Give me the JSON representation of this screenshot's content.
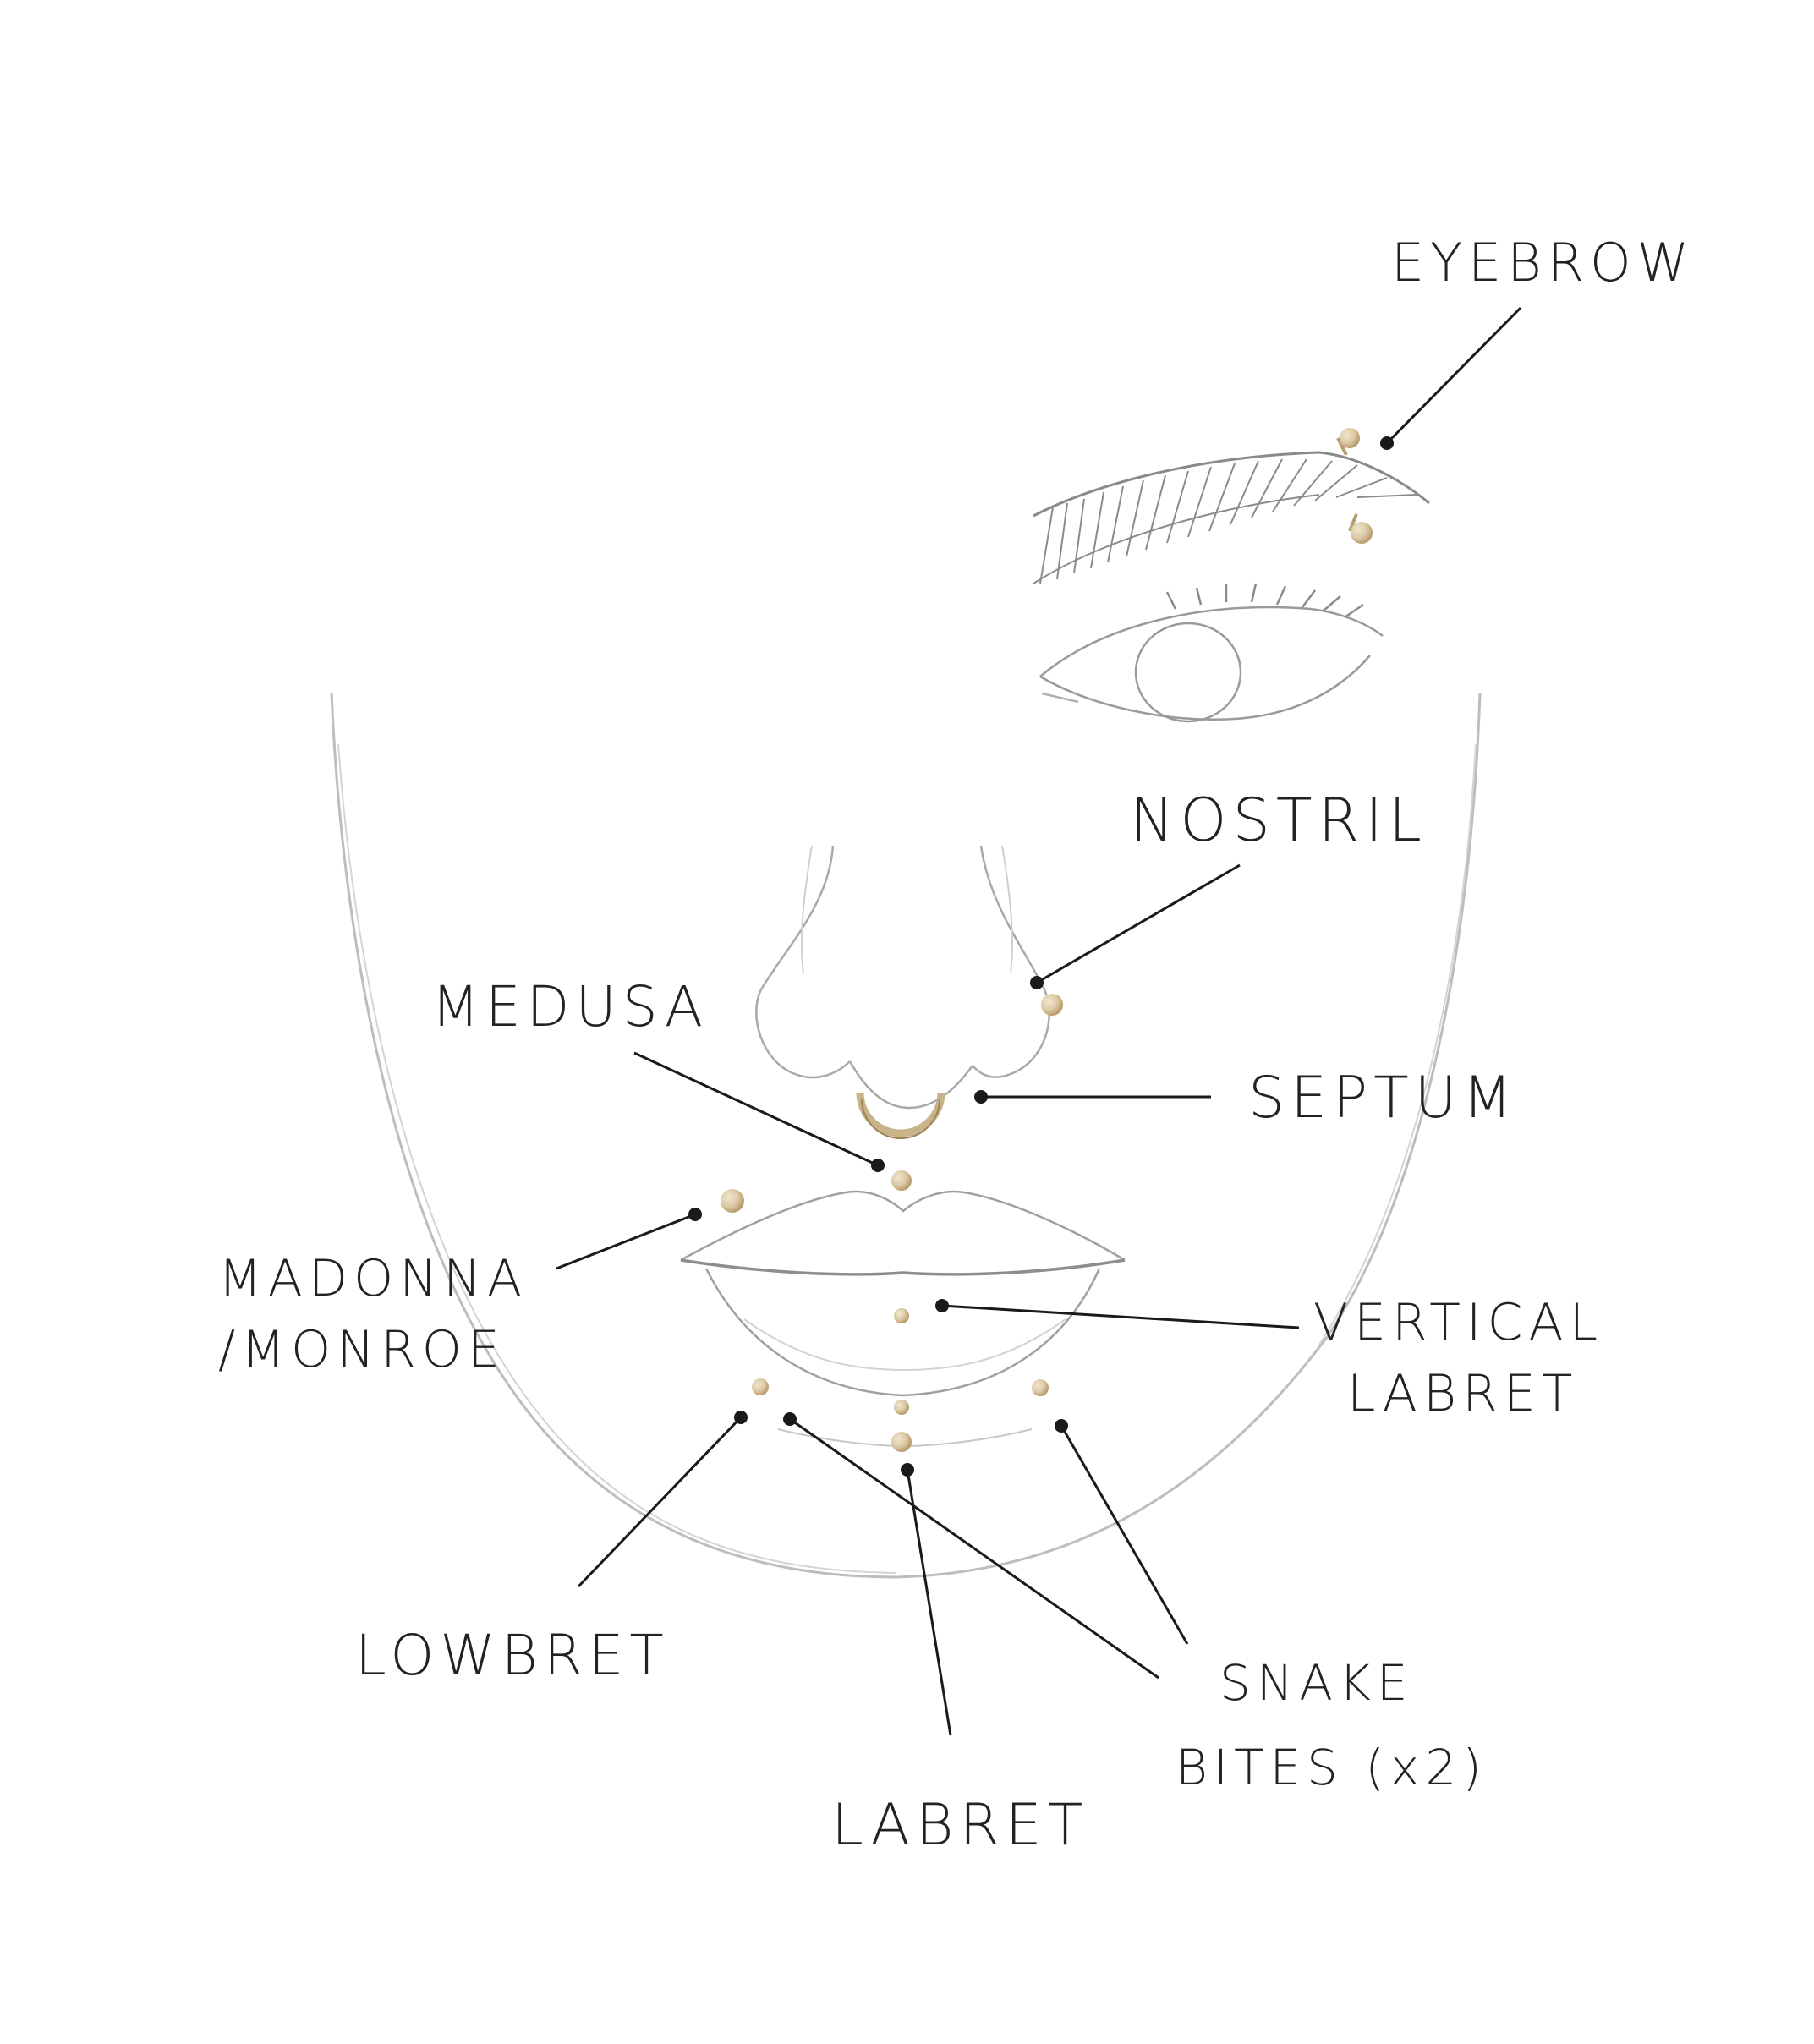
{
  "labels": {
    "eyebrow": "EYEBROW",
    "nostril": "NOSTRIL",
    "medusa": "MEDUSA",
    "septum": "SEPTUM",
    "madonna_line1": "MADONNA",
    "madonna_line2": "/MONROE",
    "vertical_line1": "VERTICAL",
    "vertical_line2": "LABRET",
    "lowbret": "LOWBRET",
    "snake_line1": "SNAKE",
    "snake_line2": "BITES (x2)",
    "labret": "LABRET"
  },
  "colors": {
    "jewelry": "#dcc9a5",
    "jewelry_shade": "#b89c6c",
    "leader": "#1a1a1a",
    "sketch": "#b9b9b9",
    "label_text": "#222222"
  }
}
